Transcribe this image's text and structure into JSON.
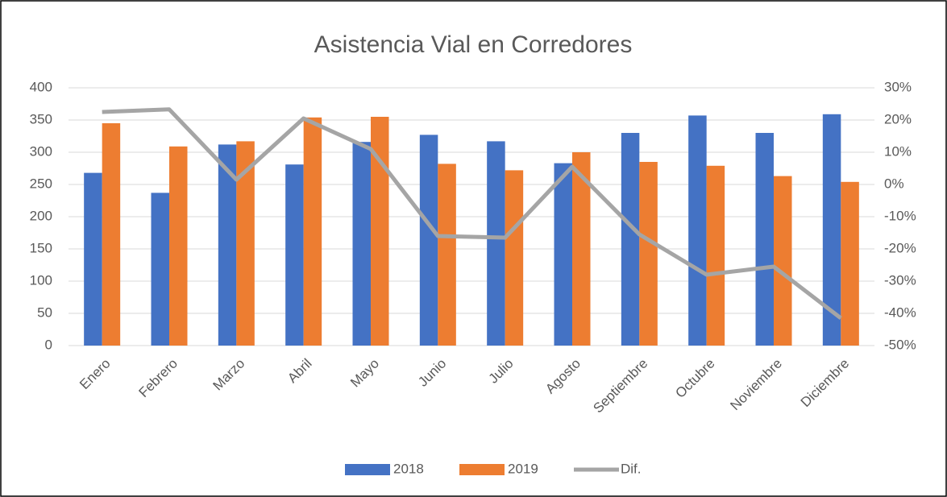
{
  "chart_data": {
    "type": "bar",
    "title": "Asistencia Vial en Corredores",
    "categories": [
      "Enero",
      "Febrero",
      "Marzo",
      "Abril",
      "Mayo",
      "Junio",
      "Julio",
      "Agosto",
      "Septiembre",
      "Octubre",
      "Noviembre",
      "Diciembre"
    ],
    "series": [
      {
        "name": "2018",
        "type": "bar",
        "color": "#4472c4",
        "values": [
          268,
          237,
          312,
          281,
          316,
          327,
          317,
          283,
          330,
          357,
          330,
          359
        ]
      },
      {
        "name": "2019",
        "type": "bar",
        "color": "#ed7d31",
        "values": [
          345,
          309,
          317,
          354,
          355,
          282,
          272,
          300,
          285,
          279,
          263,
          254
        ]
      },
      {
        "name": "Dif.",
        "type": "line",
        "axis": "y2",
        "color": "#a5a5a5",
        "values": [
          22.5,
          23.3,
          1.5,
          20.5,
          11,
          -16,
          -16.5,
          5.5,
          -15.5,
          -28,
          -25.5,
          -41.5
        ]
      }
    ],
    "ylim": [
      0,
      400
    ],
    "yticks": [
      0,
      50,
      100,
      150,
      200,
      250,
      300,
      350,
      400
    ],
    "y2lim": [
      -50,
      30
    ],
    "y2ticks": [
      {
        "value": -50,
        "label": "-50%"
      },
      {
        "value": -40,
        "label": "-40%"
      },
      {
        "value": -30,
        "label": "-30%"
      },
      {
        "value": -20,
        "label": "-20%"
      },
      {
        "value": -10,
        "label": "-10%"
      },
      {
        "value": 0,
        "label": "0%"
      },
      {
        "value": 10,
        "label": "10%"
      },
      {
        "value": 20,
        "label": "20%"
      },
      {
        "value": 30,
        "label": "30%"
      }
    ],
    "grid": true,
    "legend": "bottom"
  }
}
